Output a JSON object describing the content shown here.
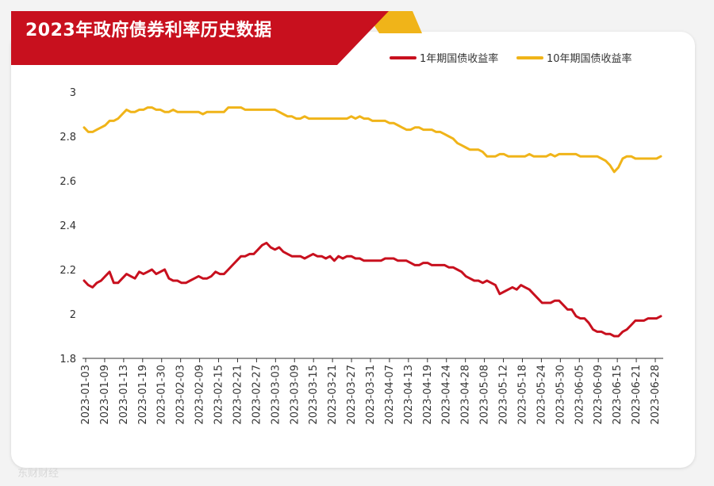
{
  "title": "2023年政府债券利率历史数据",
  "watermark": "东财财经",
  "colors": {
    "red": "#c8101e",
    "gold": "#f0b419",
    "banner": "#c8101e",
    "banner_accent": "#f0b419"
  },
  "chart_data": {
    "type": "line",
    "title": "2023年政府债券利率历史数据",
    "xlabel": "",
    "ylabel": "",
    "ylim": [
      1.8,
      3.0
    ],
    "yticks": [
      1.8,
      2,
      2.2,
      2.4,
      2.6,
      2.8,
      3
    ],
    "ytick_labels": [
      "1.8",
      "2",
      "2.2",
      "2.4",
      "2.6",
      "2.8",
      "3"
    ],
    "x_tick_labels": [
      "2023-01-03",
      "2023-01-09",
      "2023-01-13",
      "2023-01-19",
      "2023-01-30",
      "2023-02-03",
      "2023-02-09",
      "2023-02-15",
      "2023-02-21",
      "2023-02-27",
      "2023-03-03",
      "2023-03-09",
      "2023-03-15",
      "2023-03-21",
      "2023-03-27",
      "2023-03-31",
      "2023-04-07",
      "2023-04-13",
      "2023-04-19",
      "2023-04-24",
      "2023-04-28",
      "2023-05-08",
      "2023-05-12",
      "2023-05-18",
      "2023-05-24",
      "2023-05-30",
      "2023-06-05",
      "2023-06-09",
      "2023-06-15",
      "2023-06-21",
      "2023-06-28"
    ],
    "legend_position": "top-right",
    "grid": false,
    "series": [
      {
        "name": "1年期国债收益率",
        "color": "#c8101e",
        "values": [
          2.15,
          2.13,
          2.12,
          2.14,
          2.15,
          2.17,
          2.19,
          2.14,
          2.14,
          2.16,
          2.18,
          2.17,
          2.16,
          2.19,
          2.18,
          2.19,
          2.2,
          2.18,
          2.19,
          2.2,
          2.16,
          2.15,
          2.15,
          2.14,
          2.14,
          2.15,
          2.16,
          2.17,
          2.16,
          2.16,
          2.17,
          2.19,
          2.18,
          2.18,
          2.2,
          2.22,
          2.24,
          2.26,
          2.26,
          2.27,
          2.27,
          2.29,
          2.31,
          2.32,
          2.3,
          2.29,
          2.3,
          2.28,
          2.27,
          2.26,
          2.26,
          2.26,
          2.25,
          2.26,
          2.27,
          2.26,
          2.26,
          2.25,
          2.26,
          2.24,
          2.26,
          2.25,
          2.26,
          2.26,
          2.25,
          2.25,
          2.24,
          2.24,
          2.24,
          2.24,
          2.24,
          2.25,
          2.25,
          2.25,
          2.24,
          2.24,
          2.24,
          2.23,
          2.22,
          2.22,
          2.23,
          2.23,
          2.22,
          2.22,
          2.22,
          2.22,
          2.21,
          2.21,
          2.2,
          2.19,
          2.17,
          2.16,
          2.15,
          2.15,
          2.14,
          2.15,
          2.14,
          2.13,
          2.09,
          2.1,
          2.11,
          2.12,
          2.11,
          2.13,
          2.12,
          2.11,
          2.09,
          2.07,
          2.05,
          2.05,
          2.05,
          2.06,
          2.06,
          2.04,
          2.02,
          2.02,
          1.99,
          1.98,
          1.98,
          1.96,
          1.93,
          1.92,
          1.92,
          1.91,
          1.91,
          1.9,
          1.9,
          1.92,
          1.93,
          1.95,
          1.97,
          1.97,
          1.97,
          1.98,
          1.98,
          1.98,
          1.99
        ]
      },
      {
        "name": "10年期国债收益率",
        "color": "#f0b419",
        "values": [
          2.84,
          2.82,
          2.82,
          2.83,
          2.84,
          2.85,
          2.87,
          2.87,
          2.88,
          2.9,
          2.92,
          2.91,
          2.91,
          2.92,
          2.92,
          2.93,
          2.93,
          2.92,
          2.92,
          2.91,
          2.91,
          2.92,
          2.91,
          2.91,
          2.91,
          2.91,
          2.91,
          2.91,
          2.9,
          2.91,
          2.91,
          2.91,
          2.91,
          2.91,
          2.93,
          2.93,
          2.93,
          2.93,
          2.92,
          2.92,
          2.92,
          2.92,
          2.92,
          2.92,
          2.92,
          2.92,
          2.91,
          2.9,
          2.89,
          2.89,
          2.88,
          2.88,
          2.89,
          2.88,
          2.88,
          2.88,
          2.88,
          2.88,
          2.88,
          2.88,
          2.88,
          2.88,
          2.88,
          2.89,
          2.88,
          2.89,
          2.88,
          2.88,
          2.87,
          2.87,
          2.87,
          2.87,
          2.86,
          2.86,
          2.85,
          2.84,
          2.83,
          2.83,
          2.84,
          2.84,
          2.83,
          2.83,
          2.83,
          2.82,
          2.82,
          2.81,
          2.8,
          2.79,
          2.77,
          2.76,
          2.75,
          2.74,
          2.74,
          2.74,
          2.73,
          2.71,
          2.71,
          2.71,
          2.72,
          2.72,
          2.71,
          2.71,
          2.71,
          2.71,
          2.71,
          2.72,
          2.71,
          2.71,
          2.71,
          2.71,
          2.72,
          2.71,
          2.72,
          2.72,
          2.72,
          2.72,
          2.72,
          2.71,
          2.71,
          2.71,
          2.71,
          2.71,
          2.7,
          2.69,
          2.67,
          2.64,
          2.66,
          2.7,
          2.71,
          2.71,
          2.7,
          2.7,
          2.7,
          2.7,
          2.7,
          2.7,
          2.71
        ]
      }
    ]
  }
}
